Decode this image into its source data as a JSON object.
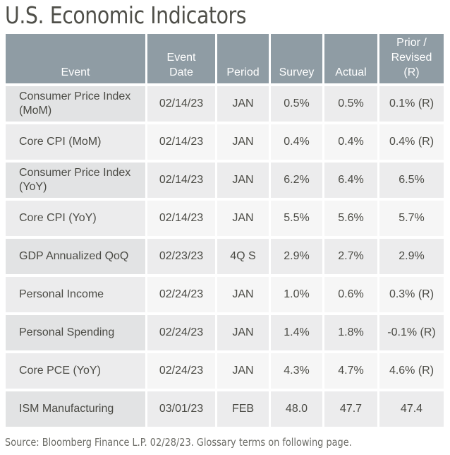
{
  "title": "U.S. Economic Indicators",
  "columns": {
    "event": "Event",
    "event_date_1": "Event",
    "event_date_2": "Date",
    "period": "Period",
    "survey": "Survey",
    "actual": "Actual",
    "prior_1": "Prior /",
    "prior_2": "Revised",
    "prior_3": "(R)"
  },
  "rows": [
    {
      "event_1": "Consumer Price Index",
      "event_2": "(MoM)",
      "date": "02/14/23",
      "period": "JAN",
      "survey": "0.5%",
      "actual": "0.5%",
      "prior": "0.1% (R)"
    },
    {
      "event_1": "Core CPI (MoM)",
      "event_2": "",
      "date": "02/14/23",
      "period": "JAN",
      "survey": "0.4%",
      "actual": "0.4%",
      "prior": "0.4% (R)"
    },
    {
      "event_1": "Consumer Price Index",
      "event_2": "(YoY)",
      "date": "02/14/23",
      "period": "JAN",
      "survey": "6.2%",
      "actual": "6.4%",
      "prior": "6.5%"
    },
    {
      "event_1": "Core CPI (YoY)",
      "event_2": "",
      "date": "02/14/23",
      "period": "JAN",
      "survey": "5.5%",
      "actual": "5.6%",
      "prior": "5.7%"
    },
    {
      "event_1": "GDP Annualized QoQ",
      "event_2": "",
      "date": "02/23/23",
      "period": "4Q S",
      "survey": "2.9%",
      "actual": "2.7%",
      "prior": "2.9%"
    },
    {
      "event_1": "Personal Income",
      "event_2": "",
      "date": "02/24/23",
      "period": "JAN",
      "survey": "1.0%",
      "actual": "0.6%",
      "prior": "0.3% (R)"
    },
    {
      "event_1": "Personal Spending",
      "event_2": "",
      "date": "02/24/23",
      "period": "JAN",
      "survey": "1.4%",
      "actual": "1.8%",
      "prior": "-0.1% (R)"
    },
    {
      "event_1": "Core PCE (YoY)",
      "event_2": "",
      "date": "02/24/23",
      "period": "JAN",
      "survey": "4.3%",
      "actual": "4.7%",
      "prior": "4.6% (R)"
    },
    {
      "event_1": "ISM Manufacturing",
      "event_2": "",
      "date": "03/01/23",
      "period": "FEB",
      "survey": "48.0",
      "actual": "47.7",
      "prior": "47.4"
    }
  ],
  "source": "Source: Bloomberg Finance L.P. 02/28/23. Glossary terms on following page.",
  "colors": {
    "header_bg": "#8f9ca4",
    "header_text": "#ffffff",
    "row_odd_event": "#e2e3e4",
    "row_odd_cell": "#ececed",
    "row_even_event": "#ececed",
    "row_even_cell": "#f6f6f6",
    "text": "#4b4b45"
  }
}
